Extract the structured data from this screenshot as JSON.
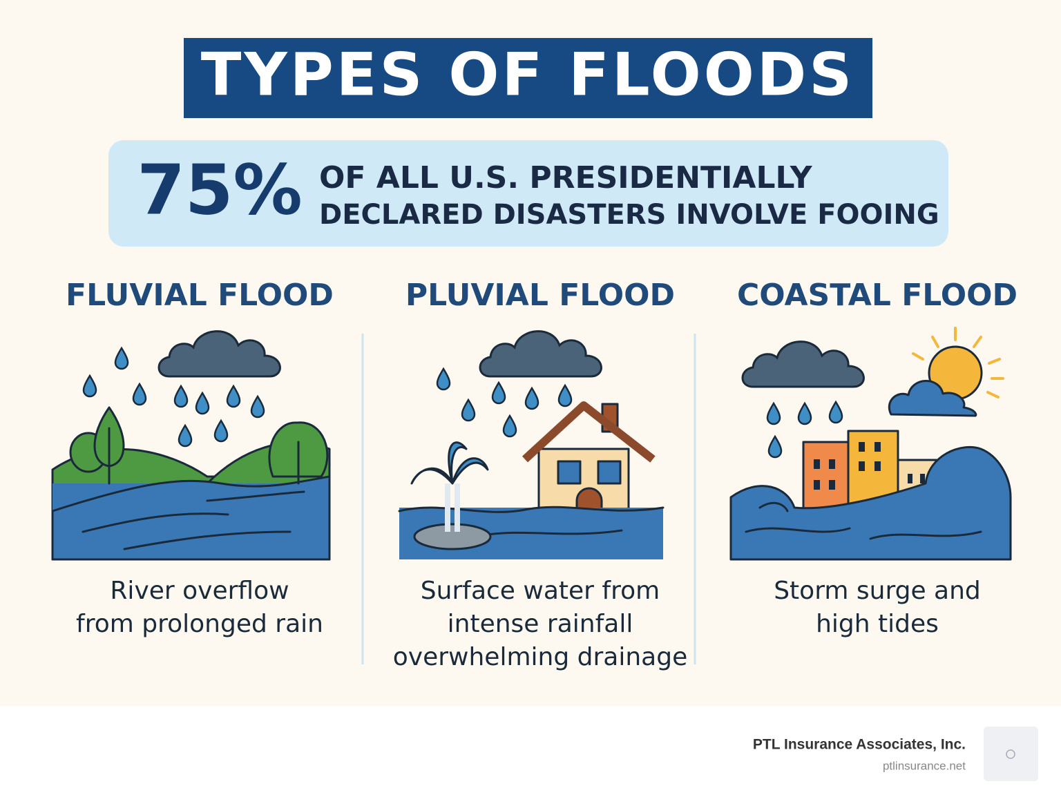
{
  "header": {
    "title": "TYPES OF FLOODS"
  },
  "stat": {
    "value": "75%",
    "lines": [
      "OF ALL U.S. PRESIDENTIALLY",
      "DECLARED DISASTERS INVOLVE FOOING"
    ]
  },
  "columns": [
    {
      "title": "FLUVIAL FLOOD",
      "description": [
        "River overflow",
        "from prolonged rain"
      ]
    },
    {
      "title": "PLUVIAL FLOOD",
      "description": [
        "Surface water from",
        "intense rainfall",
        "overwhelming drainage"
      ]
    },
    {
      "title": "COASTAL FLOOD",
      "description": [
        "Storm surge and",
        "high tides"
      ]
    }
  ],
  "footer": {
    "company": "PTL Insurance Associates, Inc.",
    "url": "ptlinsurance.net"
  }
}
